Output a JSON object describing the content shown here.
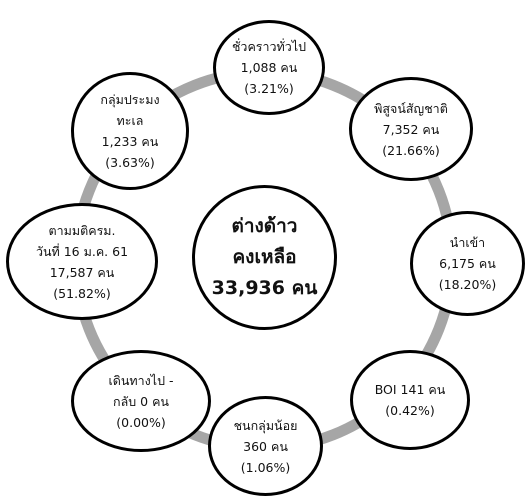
{
  "colors": {
    "ring": "#a6a6a6",
    "node_border": "#000000",
    "node_fill": "#ffffff",
    "text": "#111111"
  },
  "center": {
    "lines": [
      "ต่างด้าว",
      "คงเหลือ",
      "33,936 คน"
    ]
  },
  "nodes": [
    {
      "name": "node-temporary-general",
      "lines": [
        "ชั่วคราวทั่วไป",
        "1,088 คน",
        "(3.21%)"
      ]
    },
    {
      "name": "node-nationality-verification",
      "lines": [
        "พิสูจน์สัญชาติ",
        "7,352 คน",
        "(21.66%)"
      ]
    },
    {
      "name": "node-imported",
      "lines": [
        "นำเข้า",
        "6,175 คน",
        "(18.20%)"
      ]
    },
    {
      "name": "node-boi",
      "lines": [
        "BOI 141 คน",
        "(0.42%)"
      ]
    },
    {
      "name": "node-minority-groups",
      "lines": [
        "ชนกลุ่มน้อย",
        "360 คน",
        "(1.06%)"
      ]
    },
    {
      "name": "node-border-travel",
      "lines": [
        "เดินทางไป -",
        "กลับ 0 คน",
        "(0.00%)"
      ]
    },
    {
      "name": "node-cabinet-resolution",
      "lines": [
        "ตามมติครม.",
        "วันที่ 16 ม.ค. 61",
        "17,587 คน",
        "(51.82%)"
      ]
    },
    {
      "name": "node-fishery",
      "lines": [
        "กลุ่มประมง",
        "ทะเล",
        "1,233 คน",
        "(3.63%)"
      ]
    }
  ]
}
